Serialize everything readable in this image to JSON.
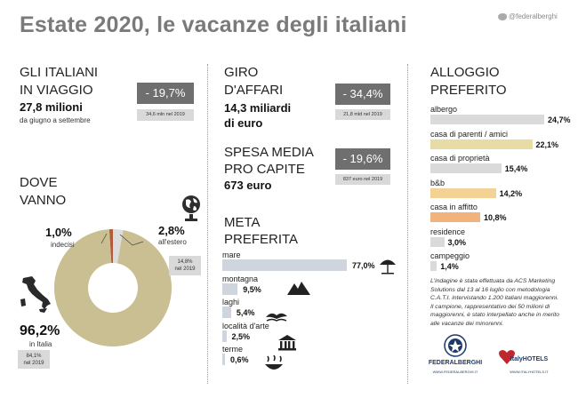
{
  "header": {
    "title": "Estate 2020, le vacanze degli italiani",
    "twitter": "@federalberghi"
  },
  "viaggio": {
    "heading_1": "GLI ITALIANI",
    "heading_2": "IN VIAGGIO",
    "value": "27,8 milioni",
    "period": "da giugno a settembre",
    "change": "- 19,7%",
    "prev": "34,6 mln nel 2019"
  },
  "dove": {
    "heading_1": "DOVE",
    "heading_2": "VANNO",
    "indecisi_value": "1,0%",
    "indecisi_label": "indecisi",
    "estero_value": "2,8%",
    "estero_label": "all'estero",
    "estero_prev_1": "14,8%",
    "estero_prev_2": "nel 2019",
    "italia_value": "96,2%",
    "italia_label": "in Italia",
    "italia_prev_1": "84,1%",
    "italia_prev_2": "nel 2019"
  },
  "affari": {
    "heading_1": "GIRO",
    "heading_2": "D'AFFARI",
    "value_1": "14,3 miliardi",
    "value_2": "di euro",
    "change": "- 34,4%",
    "prev": "21,8 mld nel 2019"
  },
  "spesa": {
    "heading_1": "SPESA MEDIA",
    "heading_2": "PRO CAPITE",
    "value": "673 euro",
    "change": "- 19,6%",
    "prev": "837 euro nel 2019"
  },
  "meta": {
    "heading_1": "META",
    "heading_2": "PREFERITA"
  },
  "alloggio": {
    "heading_1": "ALLOGGIO",
    "heading_2": "PREFERITO"
  },
  "disclaimer": "L'indagine è stata effettuata da ACS Marketing Solutions dal 13 al 16 luglio con metodologia C.A.T.I. intervistando 1.200 italiani maggiorenni. Il campione, rappresentativo dei 50 milioni di maggiorenni, è stato interpellato anche in merito alle vacanze dei minorenni.",
  "logos": {
    "federalberghi": "FEDERALBERGHI",
    "federalberghi_url": "WWW.FEDERALBERGHI.IT",
    "italyhotels": "ItalyHOTELS",
    "italyhotels_url": "WWW.ITALYHOTELS.IT"
  },
  "icons": {
    "globe": "globe-icon",
    "italy": "italy-map-icon",
    "mare": "beach-umbrella-icon",
    "montagna": "mountain-icon",
    "laghi": "lake-icon",
    "arte": "temple-icon",
    "terme": "spa-icon"
  },
  "chart_data": [
    {
      "type": "pie",
      "categories": [
        "in Italia",
        "all'estero",
        "indecisi"
      ],
      "values": [
        96.2,
        2.8,
        1.0
      ],
      "value_labels": [
        "96,2%",
        "2,8%",
        "1,0%"
      ],
      "colors": [
        "#c9bf92",
        "#dcdcdc",
        "#b35a3a"
      ],
      "donut": true,
      "legend": "none"
    },
    {
      "type": "bar",
      "orientation": "horizontal",
      "categories": [
        "mare",
        "montagna",
        "laghi",
        "località d'arte",
        "terme"
      ],
      "values": [
        77.0,
        9.5,
        5.4,
        2.5,
        0.6
      ],
      "value_labels": [
        "77,0%",
        "9,5%",
        "5,4%",
        "2,5%",
        "0,6%"
      ],
      "color": "#cfd5dc",
      "xlim": [
        0,
        77
      ]
    },
    {
      "type": "bar",
      "orientation": "horizontal",
      "categories": [
        "albergo",
        "casa di parenti / amici",
        "casa di proprietà",
        "b&b",
        "casa in affitto",
        "residence",
        "campeggio"
      ],
      "values": [
        24.7,
        22.1,
        15.4,
        14.2,
        10.8,
        3.0,
        1.4
      ],
      "value_labels": [
        "24,7%",
        "22,1%",
        "15,4%",
        "14,2%",
        "10,8%",
        "3,0%",
        "1,4%"
      ],
      "colors": [
        "#dadada",
        "#e8dca6",
        "#dadada",
        "#f3d296",
        "#f2b27c",
        "#dadada",
        "#dadada"
      ],
      "xlim": [
        0,
        24.7
      ]
    }
  ]
}
